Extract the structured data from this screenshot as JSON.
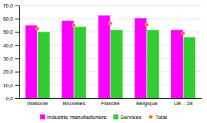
{
  "chart_data": {
    "type": "bar",
    "categories": [
      "Wallonie",
      "Bruxelles",
      "Flandre",
      "Belgique",
      "UE - 28"
    ],
    "series": [
      {
        "name": "Industrie manufacturière",
        "color": "#ff00ff",
        "values": [
          55.0,
          58.5,
          62.5,
          60.5,
          51.5
        ]
      },
      {
        "name": "Services",
        "color": "#33cc33",
        "values": [
          50.0,
          54.0,
          51.5,
          51.5,
          46.0
        ]
      },
      {
        "name": "Total",
        "color": "#ff6600",
        "type": "scatter",
        "marker": "circle",
        "values": [
          52.5,
          55.0,
          56.5,
          55.5,
          49.0
        ]
      }
    ],
    "ylim": [
      0,
      70
    ],
    "yticks": [
      {
        "value": 0,
        "label": "0,0"
      },
      {
        "value": 10,
        "label": "10,0"
      },
      {
        "value": 20,
        "label": "20,0"
      },
      {
        "value": 30,
        "label": "30,0"
      },
      {
        "value": 40,
        "label": "40,0"
      },
      {
        "value": 50,
        "label": "50,0"
      },
      {
        "value": 60,
        "label": "60,0"
      },
      {
        "value": 70,
        "label": "70,0"
      }
    ],
    "grid": true,
    "legend": "bottom"
  }
}
